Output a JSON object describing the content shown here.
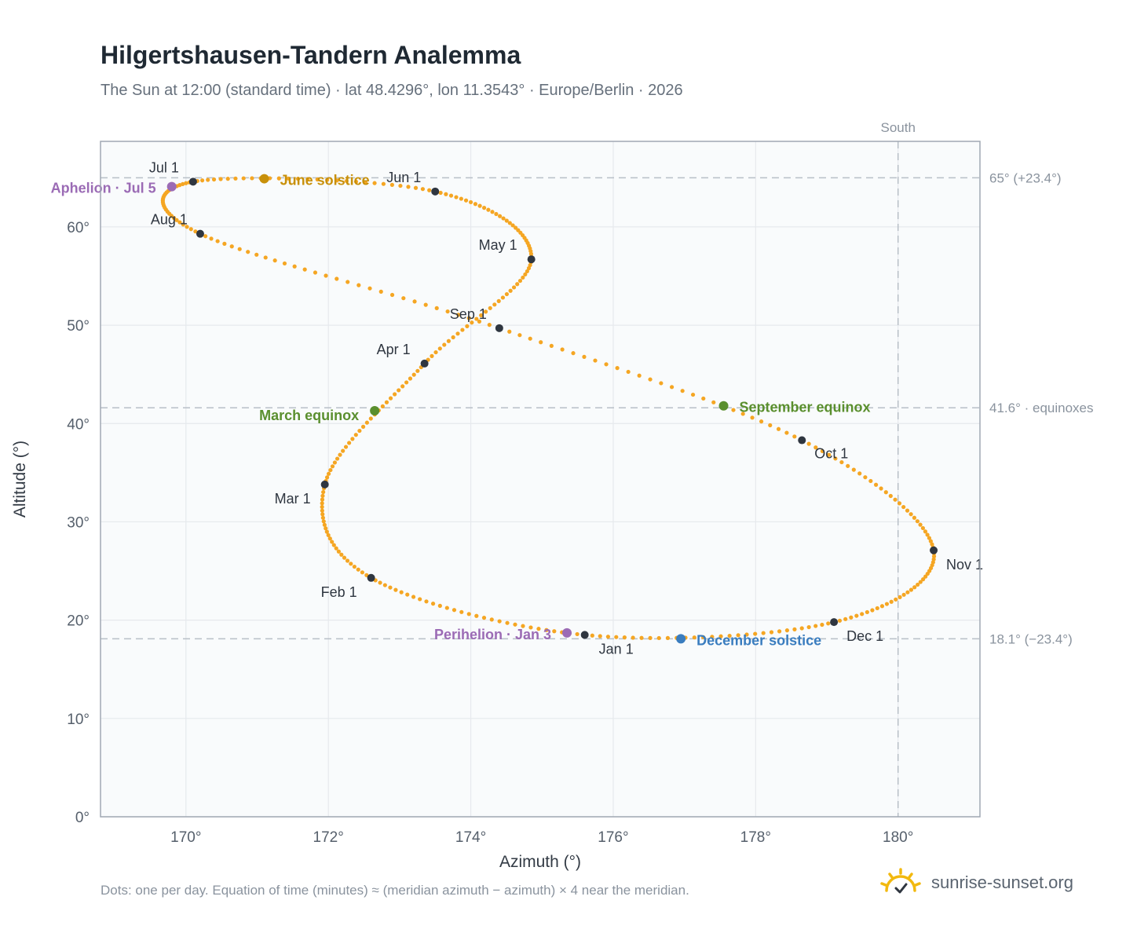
{
  "title": "Hilgertshausen-Tandern Analemma",
  "subtitle": "The Sun at 12:00 (standard time) · lat 48.4296°, lon 11.3543° · Europe/Berlin · 2026",
  "footnote": "Dots: one per day. Equation of time (minutes) ≈ (meridian azimuth − azimuth) × 4 near the meridian.",
  "brand": {
    "name": "sunrise-sunset.org",
    "icon": "sun-logo-icon",
    "color": "#f2b90f"
  },
  "colors": {
    "curve": "#f5a623",
    "month_marker": "#2f3640",
    "solstice_june": "#c8900a",
    "solstice_december": "#3a7dbf",
    "equinox": "#5a8f2e",
    "apsis": "#9b6bb5",
    "grid": "#e6e9ed",
    "plot_background": "#f9fbfc",
    "axis_border": "#a0a8b3",
    "reference_line": "#b8bfc7"
  },
  "chart_data": {
    "type": "scatter",
    "xlabel": "Azimuth (°)",
    "ylabel": "Altitude (°)",
    "xlim": [
      168.8,
      181.15
    ],
    "ylim": [
      0,
      68.7
    ],
    "xticks": [
      170,
      172,
      174,
      176,
      178,
      180
    ],
    "yticks": [
      0,
      10,
      20,
      30,
      40,
      50,
      60
    ],
    "xtick_suffix": "°",
    "ytick_suffix": "°",
    "grid": true,
    "meridian": {
      "azimuth": 180,
      "label": "South"
    },
    "reference_lines": [
      {
        "altitude": 65,
        "label": "65° (+23.4°)"
      },
      {
        "altitude": 41.6,
        "label": "41.6° · equinoxes"
      },
      {
        "altitude": 18.1,
        "label": "18.1° (−23.4°)"
      }
    ],
    "analemma_keypoints": [
      {
        "month": "Jan 1",
        "az": 175.6,
        "alt": 18.5
      },
      {
        "month": "Feb 1",
        "az": 172.6,
        "alt": 24.3
      },
      {
        "month": "Mar 1",
        "az": 171.95,
        "alt": 33.8
      },
      {
        "month": "Apr 1",
        "az": 173.35,
        "alt": 46.1
      },
      {
        "month": "May 1",
        "az": 174.85,
        "alt": 56.7
      },
      {
        "month": "Jun 1",
        "az": 173.5,
        "alt": 63.6
      },
      {
        "month": "Jul 1",
        "az": 170.1,
        "alt": 64.6
      },
      {
        "month": "Aug 1",
        "az": 170.2,
        "alt": 59.3
      },
      {
        "month": "Sep 1",
        "az": 174.4,
        "alt": 49.7
      },
      {
        "month": "Oct 1",
        "az": 178.65,
        "alt": 38.3
      },
      {
        "month": "Nov 1",
        "az": 180.5,
        "alt": 27.1
      },
      {
        "month": "Dec 1",
        "az": 179.1,
        "alt": 19.8
      }
    ],
    "special_points": [
      {
        "label": "June solstice",
        "az": 171.1,
        "alt": 64.9,
        "kind": "solstice_june"
      },
      {
        "label": "December solstice",
        "az": 176.95,
        "alt": 18.1,
        "kind": "solstice_december"
      },
      {
        "label": "March equinox",
        "az": 172.65,
        "alt": 41.3,
        "kind": "equinox"
      },
      {
        "label": "September equinox",
        "az": 177.55,
        "alt": 41.8,
        "kind": "equinox"
      },
      {
        "label": "Aphelion · Jul 5",
        "az": 169.8,
        "alt": 64.1,
        "kind": "apsis"
      },
      {
        "label": "Perihelion · Jan 3",
        "az": 175.35,
        "alt": 18.7,
        "kind": "apsis"
      }
    ]
  }
}
